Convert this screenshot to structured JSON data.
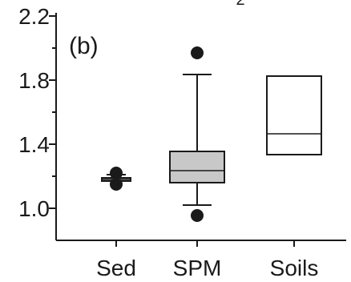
{
  "chart_data": {
    "type": "boxplot",
    "panel_label": "(b)",
    "top_fragment": "2",
    "categories": [
      "Sed",
      "SPM",
      "Soils"
    ],
    "ylim": [
      0.9,
      2.2
    ],
    "ytick_labels": [
      "1.0",
      "1.4",
      "1.8",
      "2.2"
    ],
    "yticks_major": [
      1.0,
      1.4,
      1.8,
      2.2
    ],
    "yticks_minor": [
      1.2,
      1.6,
      2.0
    ],
    "boxes": [
      {
        "category": "Sed",
        "whisker_low": 1.17,
        "q1": 1.17,
        "median": 1.18,
        "q3": 1.19,
        "whisker_high": 1.21,
        "fill": "#d4d4d4",
        "outliers": [
          1.22,
          1.15
        ]
      },
      {
        "category": "SPM",
        "whisker_low": 1.02,
        "q1": 1.16,
        "median": 1.235,
        "q3": 1.355,
        "whisker_high": 1.835,
        "fill": "#c8c8c8",
        "outliers": [
          1.97,
          0.955
        ]
      },
      {
        "category": "Soils",
        "q1": 1.335,
        "median": 1.465,
        "q3": 1.825,
        "fill": "#ffffff",
        "outliers": []
      }
    ]
  }
}
